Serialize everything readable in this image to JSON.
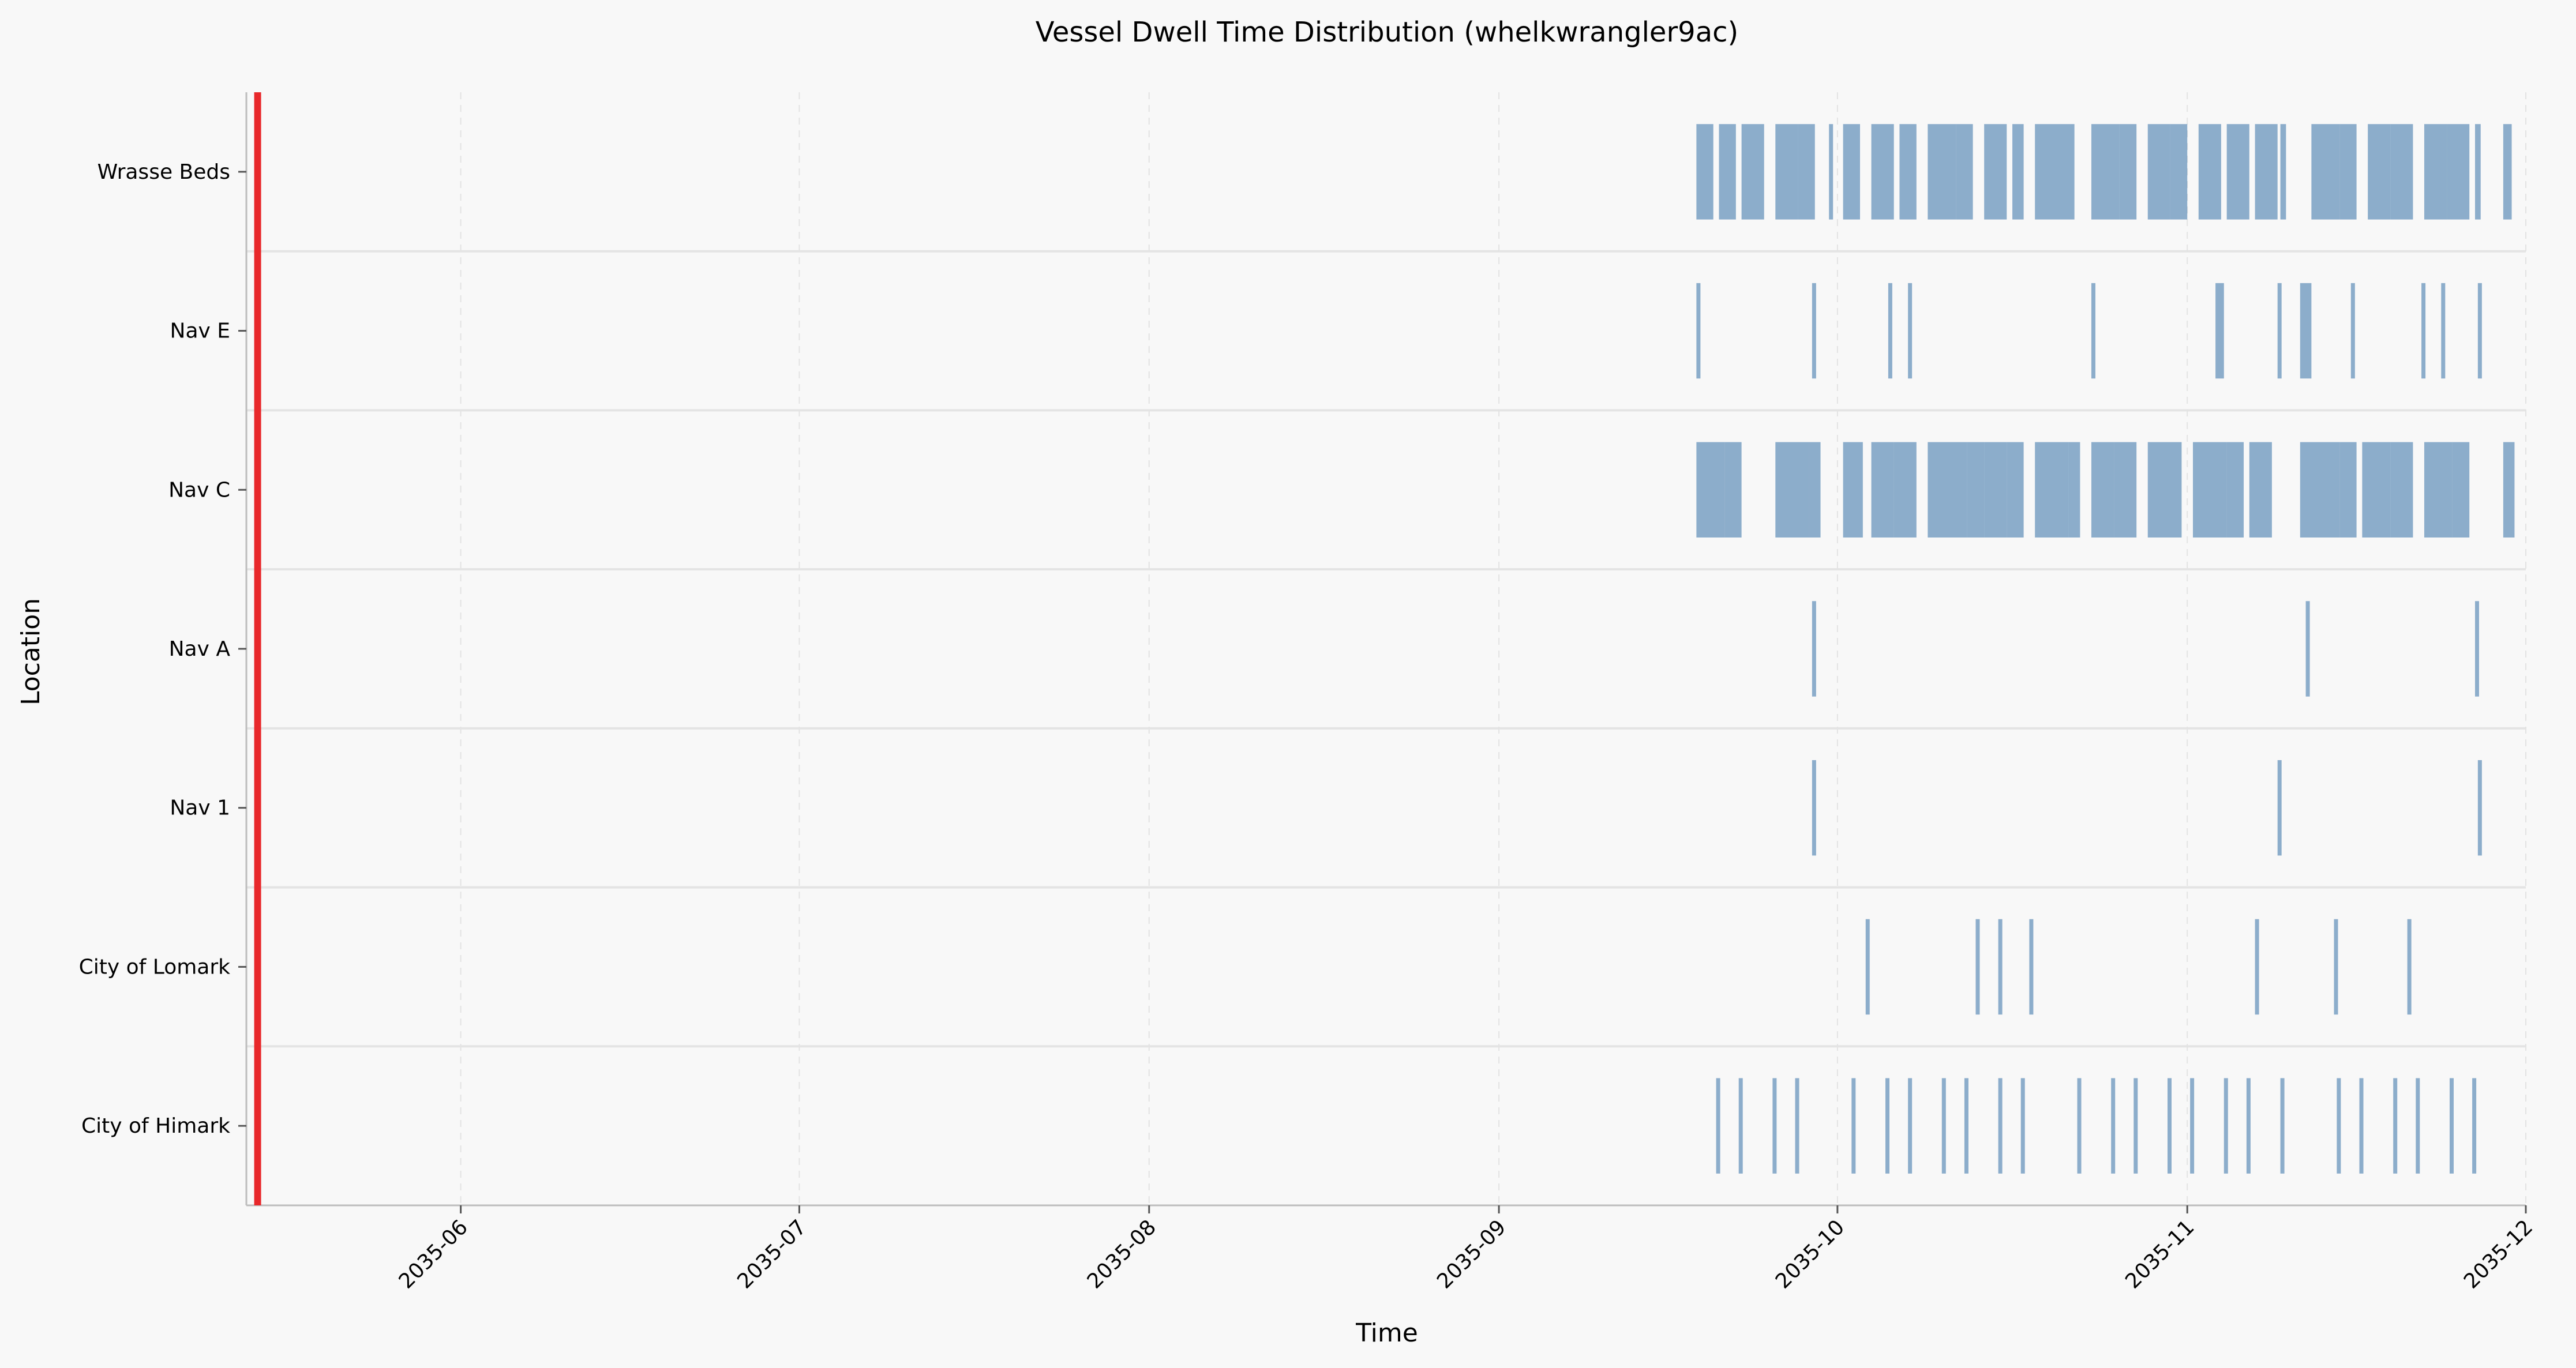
{
  "chart_data": {
    "type": "event-timeline",
    "title": "Vessel Dwell Time Distribution (whelkwrangler9ac)",
    "xlabel": "Time",
    "ylabel": "Location",
    "x_axis": {
      "kind": "date",
      "range": [
        "2035-05-13",
        "2035-12-01"
      ],
      "ticks": [
        "2035-06",
        "2035-07",
        "2035-08",
        "2035-09",
        "2035-10",
        "2035-11",
        "2035-12"
      ]
    },
    "categories": [
      "Wrasse Beds",
      "Nav E",
      "Nav C",
      "Nav A",
      "Nav 1",
      "City of Lomark",
      "City of Himark"
    ],
    "grid": "dashed vertical gridlines at month ticks; horizontal separators between rows",
    "colors": {
      "dwell_bar": "#4a7fb0",
      "marker_line": "#e8282b",
      "background": "#f8f8f8"
    },
    "marker_line_date": "2035-05-14",
    "events": [
      {
        "location": "Wrasse Beds",
        "dwells": [
          [
            "2035-09-18T12:00",
            "2035-09-20T00:00"
          ],
          [
            "2035-09-20T12:00",
            "2035-09-22T00:00"
          ],
          [
            "2035-09-22T12:00",
            "2035-09-24T12:00"
          ],
          [
            "2035-09-25T12:00",
            "2035-09-27T12:00"
          ],
          [
            "2035-09-27T12:00",
            "2035-09-29T00:00"
          ],
          [
            "2035-09-30T06:00",
            "2035-09-30T12:00"
          ],
          [
            "2035-10-01T12:00",
            "2035-10-03T00:00"
          ],
          [
            "2035-10-04T00:00",
            "2035-10-06T00:00"
          ],
          [
            "2035-10-06T12:00",
            "2035-10-08T00:00"
          ],
          [
            "2035-10-09T00:00",
            "2035-10-11T12:00"
          ],
          [
            "2035-10-11T12:00",
            "2035-10-13T00:00"
          ],
          [
            "2035-10-14T00:00",
            "2035-10-16T00:00"
          ],
          [
            "2035-10-16T12:00",
            "2035-10-17T12:00"
          ],
          [
            "2035-10-18T12:00",
            "2035-10-20T00:00"
          ],
          [
            "2035-10-20T00:00",
            "2035-10-22T00:00"
          ],
          [
            "2035-10-23T12:00",
            "2035-10-26T00:00"
          ],
          [
            "2035-10-26T00:00",
            "2035-10-27T12:00"
          ],
          [
            "2035-10-28T12:00",
            "2035-10-30T12:00"
          ],
          [
            "2035-10-30T12:00",
            "2035-11-01T00:00"
          ],
          [
            "2035-11-02T00:00",
            "2035-11-04T00:00"
          ],
          [
            "2035-11-04T12:00",
            "2035-11-06T12:00"
          ],
          [
            "2035-11-07T00:00",
            "2035-11-09T00:00"
          ],
          [
            "2035-11-09T06:00",
            "2035-11-09T18:00"
          ],
          [
            "2035-11-12T00:00",
            "2035-11-14T12:00"
          ],
          [
            "2035-11-14T12:00",
            "2035-11-16T00:00"
          ],
          [
            "2035-11-17T00:00",
            "2035-11-19T00:00"
          ],
          [
            "2035-11-19T00:00",
            "2035-11-21T00:00"
          ],
          [
            "2035-11-22T00:00",
            "2035-11-24T00:00"
          ],
          [
            "2035-11-24T00:00",
            "2035-11-26T00:00"
          ],
          [
            "2035-11-26T12:00",
            "2035-11-27T00:00"
          ],
          [
            "2035-11-29T00:00",
            "2035-11-29T18:00"
          ]
        ]
      },
      {
        "location": "Nav E",
        "dwells": [
          [
            "2035-09-18T12:00",
            "2035-09-18T18:00"
          ],
          [
            "2035-09-28T18:00",
            "2035-09-29T00:00"
          ],
          [
            "2035-10-05T12:00",
            "2035-10-05T18:00"
          ],
          [
            "2035-10-07T06:00",
            "2035-10-07T12:00"
          ],
          [
            "2035-10-23T12:00",
            "2035-10-23T18:00"
          ],
          [
            "2035-11-03T12:00",
            "2035-11-04T06:00"
          ],
          [
            "2035-11-09T00:00",
            "2035-11-09T06:00"
          ],
          [
            "2035-11-11T00:00",
            "2035-11-12T00:00"
          ],
          [
            "2035-11-15T12:00",
            "2035-11-15T18:00"
          ],
          [
            "2035-11-21T18:00",
            "2035-11-22T00:00"
          ],
          [
            "2035-11-23T12:00",
            "2035-11-23T18:00"
          ],
          [
            "2035-11-26T18:00",
            "2035-11-27T00:00"
          ]
        ]
      },
      {
        "location": "Nav C",
        "dwells": [
          [
            "2035-09-18T12:00",
            "2035-09-21T00:00"
          ],
          [
            "2035-09-21T00:00",
            "2035-09-22T12:00"
          ],
          [
            "2035-09-25T12:00",
            "2035-09-28T12:00"
          ],
          [
            "2035-09-28T12:00",
            "2035-09-29T12:00"
          ],
          [
            "2035-10-01T12:00",
            "2035-10-03T06:00"
          ],
          [
            "2035-10-04T00:00",
            "2035-10-06T00:00"
          ],
          [
            "2035-10-06T00:00",
            "2035-10-08T00:00"
          ],
          [
            "2035-10-09T00:00",
            "2035-10-12T12:00"
          ],
          [
            "2035-10-12T12:00",
            "2035-10-14T00:00"
          ],
          [
            "2035-10-14T00:00",
            "2035-10-16T00:00"
          ],
          [
            "2035-10-16T00:00",
            "2035-10-17T12:00"
          ],
          [
            "2035-10-18T12:00",
            "2035-10-21T12:00"
          ],
          [
            "2035-10-21T12:00",
            "2035-10-22T12:00"
          ],
          [
            "2035-10-23T12:00",
            "2035-10-25T12:00"
          ],
          [
            "2035-10-25T12:00",
            "2035-10-27T12:00"
          ],
          [
            "2035-10-28T12:00",
            "2035-10-31T12:00"
          ],
          [
            "2035-11-01T12:00",
            "2035-11-04T12:00"
          ],
          [
            "2035-11-04T12:00",
            "2035-11-06T00:00"
          ],
          [
            "2035-11-06T12:00",
            "2035-11-08T12:00"
          ],
          [
            "2035-11-11T00:00",
            "2035-11-14T12:00"
          ],
          [
            "2035-11-14T12:00",
            "2035-11-16T00:00"
          ],
          [
            "2035-11-16T12:00",
            "2035-11-19T00:00"
          ],
          [
            "2035-11-19T00:00",
            "2035-11-21T00:00"
          ],
          [
            "2035-11-22T00:00",
            "2035-11-24T12:00"
          ],
          [
            "2035-11-24T12:00",
            "2035-11-26T00:00"
          ],
          [
            "2035-11-29T00:00",
            "2035-11-30T00:00"
          ]
        ]
      },
      {
        "location": "Nav A",
        "dwells": [
          [
            "2035-09-28T18:00",
            "2035-09-29T00:00"
          ],
          [
            "2035-11-11T12:00",
            "2035-11-11T18:00"
          ],
          [
            "2035-11-26T12:00",
            "2035-11-26T18:00"
          ]
        ]
      },
      {
        "location": "Nav 1",
        "dwells": [
          [
            "2035-09-28T18:00",
            "2035-09-29T00:00"
          ],
          [
            "2035-11-09T00:00",
            "2035-11-09T06:00"
          ],
          [
            "2035-11-26T18:00",
            "2035-11-27T00:00"
          ]
        ]
      },
      {
        "location": "City of Lomark",
        "dwells": [
          [
            "2035-10-03T12:00",
            "2035-10-03T18:00"
          ],
          [
            "2035-10-13T06:00",
            "2035-10-13T12:00"
          ],
          [
            "2035-10-15T06:00",
            "2035-10-15T12:00"
          ],
          [
            "2035-10-18T00:00",
            "2035-10-18T06:00"
          ],
          [
            "2035-11-07T00:00",
            "2035-11-07T06:00"
          ],
          [
            "2035-11-14T00:00",
            "2035-11-14T06:00"
          ],
          [
            "2035-11-20T12:00",
            "2035-11-20T18:00"
          ]
        ]
      },
      {
        "location": "City of Himark",
        "dwells": [
          [
            "2035-09-20T06:00",
            "2035-09-20T12:00"
          ],
          [
            "2035-09-22T06:00",
            "2035-09-22T12:00"
          ],
          [
            "2035-09-25T06:00",
            "2035-09-25T12:00"
          ],
          [
            "2035-09-27T06:00",
            "2035-09-27T12:00"
          ],
          [
            "2035-10-02T06:00",
            "2035-10-02T12:00"
          ],
          [
            "2035-10-05T06:00",
            "2035-10-05T12:00"
          ],
          [
            "2035-10-07T06:00",
            "2035-10-07T12:00"
          ],
          [
            "2035-10-10T06:00",
            "2035-10-10T12:00"
          ],
          [
            "2035-10-12T06:00",
            "2035-10-12T12:00"
          ],
          [
            "2035-10-15T06:00",
            "2035-10-15T12:00"
          ],
          [
            "2035-10-17T06:00",
            "2035-10-17T12:00"
          ],
          [
            "2035-10-22T06:00",
            "2035-10-22T12:00"
          ],
          [
            "2035-10-25T06:00",
            "2035-10-25T12:00"
          ],
          [
            "2035-10-27T06:00",
            "2035-10-27T12:00"
          ],
          [
            "2035-10-30T06:00",
            "2035-10-30T12:00"
          ],
          [
            "2035-11-01T06:00",
            "2035-11-01T12:00"
          ],
          [
            "2035-11-04T06:00",
            "2035-11-04T12:00"
          ],
          [
            "2035-11-06T06:00",
            "2035-11-06T12:00"
          ],
          [
            "2035-11-09T06:00",
            "2035-11-09T12:00"
          ],
          [
            "2035-11-14T06:00",
            "2035-11-14T12:00"
          ],
          [
            "2035-11-16T06:00",
            "2035-11-16T12:00"
          ],
          [
            "2035-11-19T06:00",
            "2035-11-19T12:00"
          ],
          [
            "2035-11-21T06:00",
            "2035-11-21T12:00"
          ],
          [
            "2035-11-24T06:00",
            "2035-11-24T12:00"
          ],
          [
            "2035-11-26T06:00",
            "2035-11-26T12:00"
          ]
        ]
      }
    ]
  }
}
